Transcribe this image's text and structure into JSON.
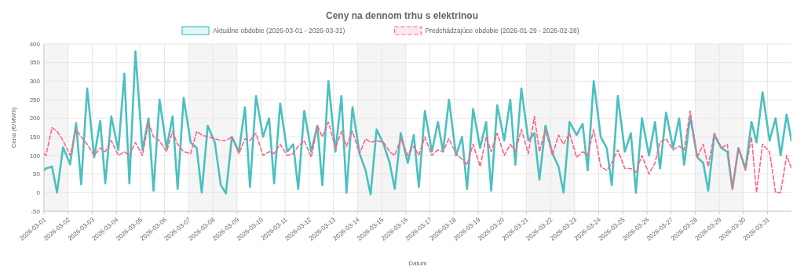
{
  "chart_data": {
    "type": "line",
    "title": "Ceny na dennom trhu s elektrinou",
    "xlabel": "Dátum",
    "ylabel": "Cena (€/MWh)",
    "x": [
      "2026-03-01T00:00",
      "2026-03-01T02:00",
      "2026-03-01T08:00",
      "2026-03-01T13:00",
      "2026-03-01T19:00",
      "2026-03-02T02:00",
      "2026-03-02T08:00",
      "2026-03-02T13:00",
      "2026-03-02T19:00",
      "2026-03-03T02:00",
      "2026-03-03T08:00",
      "2026-03-03T13:00",
      "2026-03-03T19:00",
      "2026-03-04T02:00",
      "2026-03-04T08:00",
      "2026-03-04T13:00",
      "2026-03-04T19:00",
      "2026-03-05T02:00",
      "2026-03-05T08:00",
      "2026-03-05T13:00",
      "2026-03-05T19:00",
      "2026-03-06T02:00",
      "2026-03-06T08:00",
      "2026-03-06T13:00",
      "2026-03-06T19:00",
      "2026-03-07T02:00",
      "2026-03-07T08:00",
      "2026-03-07T13:00",
      "2026-03-07T19:00",
      "2026-03-08T02:00",
      "2026-03-08T08:00",
      "2026-03-08T13:00",
      "2026-03-08T19:00",
      "2026-03-09T02:00",
      "2026-03-09T08:00",
      "2026-03-09T13:00",
      "2026-03-09T19:00",
      "2026-03-10T02:00",
      "2026-03-10T08:00",
      "2026-03-10T13:00",
      "2026-03-10T19:00",
      "2026-03-11T02:00",
      "2026-03-11T08:00",
      "2026-03-11T13:00",
      "2026-03-11T19:00",
      "2026-03-12T02:00",
      "2026-03-12T08:00",
      "2026-03-12T13:00",
      "2026-03-12T19:00",
      "2026-03-13T02:00",
      "2026-03-13T08:00",
      "2026-03-13T13:00",
      "2026-03-13T19:00",
      "2026-03-14T02:00",
      "2026-03-14T08:00",
      "2026-03-14T13:00",
      "2026-03-14T19:00",
      "2026-03-15T02:00",
      "2026-03-15T08:00",
      "2026-03-15T13:00",
      "2026-03-15T19:00",
      "2026-03-16T02:00",
      "2026-03-16T08:00",
      "2026-03-16T13:00",
      "2026-03-16T19:00",
      "2026-03-17T02:00",
      "2026-03-17T08:00",
      "2026-03-17T13:00",
      "2026-03-17T19:00",
      "2026-03-18T02:00",
      "2026-03-18T08:00",
      "2026-03-18T13:00",
      "2026-03-18T19:00",
      "2026-03-19T02:00",
      "2026-03-19T08:00",
      "2026-03-19T13:00",
      "2026-03-19T19:00",
      "2026-03-20T02:00",
      "2026-03-20T08:00",
      "2026-03-20T13:00",
      "2026-03-20T19:00",
      "2026-03-21T02:00",
      "2026-03-21T08:00",
      "2026-03-21T13:00",
      "2026-03-21T19:00",
      "2026-03-22T02:00",
      "2026-03-22T08:00",
      "2026-03-22T13:00",
      "2026-03-22T19:00",
      "2026-03-23T02:00",
      "2026-03-23T08:00",
      "2026-03-23T13:00",
      "2026-03-23T19:00",
      "2026-03-24T02:00",
      "2026-03-24T08:00",
      "2026-03-24T13:00",
      "2026-03-24T19:00",
      "2026-03-25T02:00",
      "2026-03-25T08:00",
      "2026-03-25T13:00",
      "2026-03-25T19:00",
      "2026-03-26T02:00",
      "2026-03-26T08:00",
      "2026-03-26T13:00",
      "2026-03-26T19:00",
      "2026-03-27T02:00",
      "2026-03-27T08:00",
      "2026-03-27T13:00",
      "2026-03-27T19:00",
      "2026-03-28T02:00",
      "2026-03-28T08:00",
      "2026-03-28T13:00",
      "2026-03-28T19:00",
      "2026-03-29T02:00",
      "2026-03-29T08:00",
      "2026-03-29T13:00",
      "2026-03-29T19:00",
      "2026-03-30T02:00",
      "2026-03-30T08:00",
      "2026-03-30T13:00",
      "2026-03-30T19:00",
      "2026-03-31T02:00",
      "2026-03-31T08:00",
      "2026-03-31T13:00",
      "2026-03-31T19:00",
      "2026-03-31T23:45"
    ],
    "series": [
      {
        "name": "Aktuálne obdobie (2026-03-01 - 2026-03-31)",
        "color": "#4bc0c0",
        "line_style": "solid",
        "values": [
          60,
          65,
          70,
          0,
          122,
          76,
          187,
          22,
          280,
          95,
          193,
          25,
          205,
          115,
          320,
          25,
          380,
          115,
          200,
          5,
          250,
          120,
          205,
          10,
          255,
          135,
          120,
          0,
          180,
          135,
          20,
          -2,
          150,
          110,
          230,
          15,
          260,
          150,
          200,
          25,
          240,
          110,
          130,
          10,
          220,
          110,
          180,
          20,
          300,
          110,
          260,
          0,
          230,
          105,
          60,
          -5,
          170,
          130,
          80,
          10,
          160,
          80,
          155,
          15,
          220,
          110,
          190,
          110,
          250,
          100,
          150,
          10,
          225,
          120,
          190,
          5,
          235,
          140,
          250,
          75,
          280,
          140,
          160,
          35,
          180,
          105,
          70,
          0,
          190,
          155,
          185,
          60,
          300,
          150,
          120,
          20,
          260,
          110,
          160,
          0,
          200,
          100,
          190,
          65,
          215,
          120,
          200,
          75,
          205,
          95,
          80,
          5,
          155,
          120,
          110,
          10,
          120,
          65,
          190,
          135,
          270,
          140,
          200,
          100,
          210,
          140
        ]
      },
      {
        "name": "Predchádzajúce obdobie (2026-01-29 - 2026-02-28)",
        "color": "#ff6384",
        "line_style": "dashed",
        "values": [
          105,
          100,
          175,
          165,
          140,
          100,
          170,
          150,
          130,
          100,
          120,
          110,
          140,
          100,
          110,
          100,
          135,
          100,
          190,
          150,
          140,
          110,
          165,
          130,
          110,
          105,
          165,
          155,
          150,
          145,
          140,
          140,
          150,
          105,
          145,
          140,
          160,
          100,
          110,
          105,
          130,
          100,
          105,
          125,
          140,
          95,
          180,
          150,
          190,
          120,
          165,
          125,
          165,
          105,
          145,
          135,
          140,
          135,
          110,
          100,
          145,
          100,
          125,
          100,
          150,
          100,
          115,
          110,
          145,
          105,
          90,
          75,
          130,
          70,
          150,
          110,
          160,
          100,
          130,
          110,
          170,
          105,
          205,
          110,
          170,
          100,
          155,
          130,
          160,
          95,
          110,
          100,
          170,
          70,
          60,
          80,
          115,
          65,
          65,
          55,
          100,
          50,
          80,
          135,
          145,
          115,
          125,
          115,
          220,
          95,
          130,
          70,
          160,
          120,
          130,
          10,
          120,
          60,
          150,
          0,
          130,
          110,
          0,
          0,
          100,
          65
        ]
      }
    ],
    "xlim": [
      "2026-03-01T00:00",
      "2026-03-31T23:45"
    ],
    "xticks": [
      "2026-03-01",
      "2026-03-02",
      "2026-03-03",
      "2026-03-04",
      "2026-03-05",
      "2026-03-06",
      "2026-03-07",
      "2026-03-08",
      "2026-03-09",
      "2026-03-10",
      "2026-03-11",
      "2026-03-12",
      "2026-03-13",
      "2026-03-14",
      "2026-03-15",
      "2026-03-16",
      "2026-03-17",
      "2026-03-18",
      "2026-03-19",
      "2026-03-20",
      "2026-03-21",
      "2026-03-22",
      "2026-03-23",
      "2026-03-24",
      "2026-03-25",
      "2026-03-26",
      "2026-03-27",
      "2026-03-28",
      "2026-03-29",
      "2026-03-30",
      "2026-03-31"
    ],
    "ylim": [
      -50,
      400
    ],
    "yticks": [
      -50,
      0,
      50,
      100,
      150,
      200,
      250,
      300,
      350,
      400
    ],
    "bands": [
      {
        "axis": "x",
        "from": "2026-03-01",
        "to": "2026-03-02",
        "color": "#f5f5f5"
      },
      {
        "axis": "x",
        "from": "2026-03-07",
        "to": "2026-03-09",
        "color": "#f5f5f5"
      },
      {
        "axis": "x",
        "from": "2026-03-14",
        "to": "2026-03-16",
        "color": "#f5f5f5"
      },
      {
        "axis": "x",
        "from": "2026-03-21",
        "to": "2026-03-23",
        "color": "#f5f5f5"
      },
      {
        "axis": "x",
        "from": "2026-03-28",
        "to": "2026-03-30",
        "color": "#f5f5f5"
      }
    ],
    "grid": true,
    "legend": "top"
  }
}
